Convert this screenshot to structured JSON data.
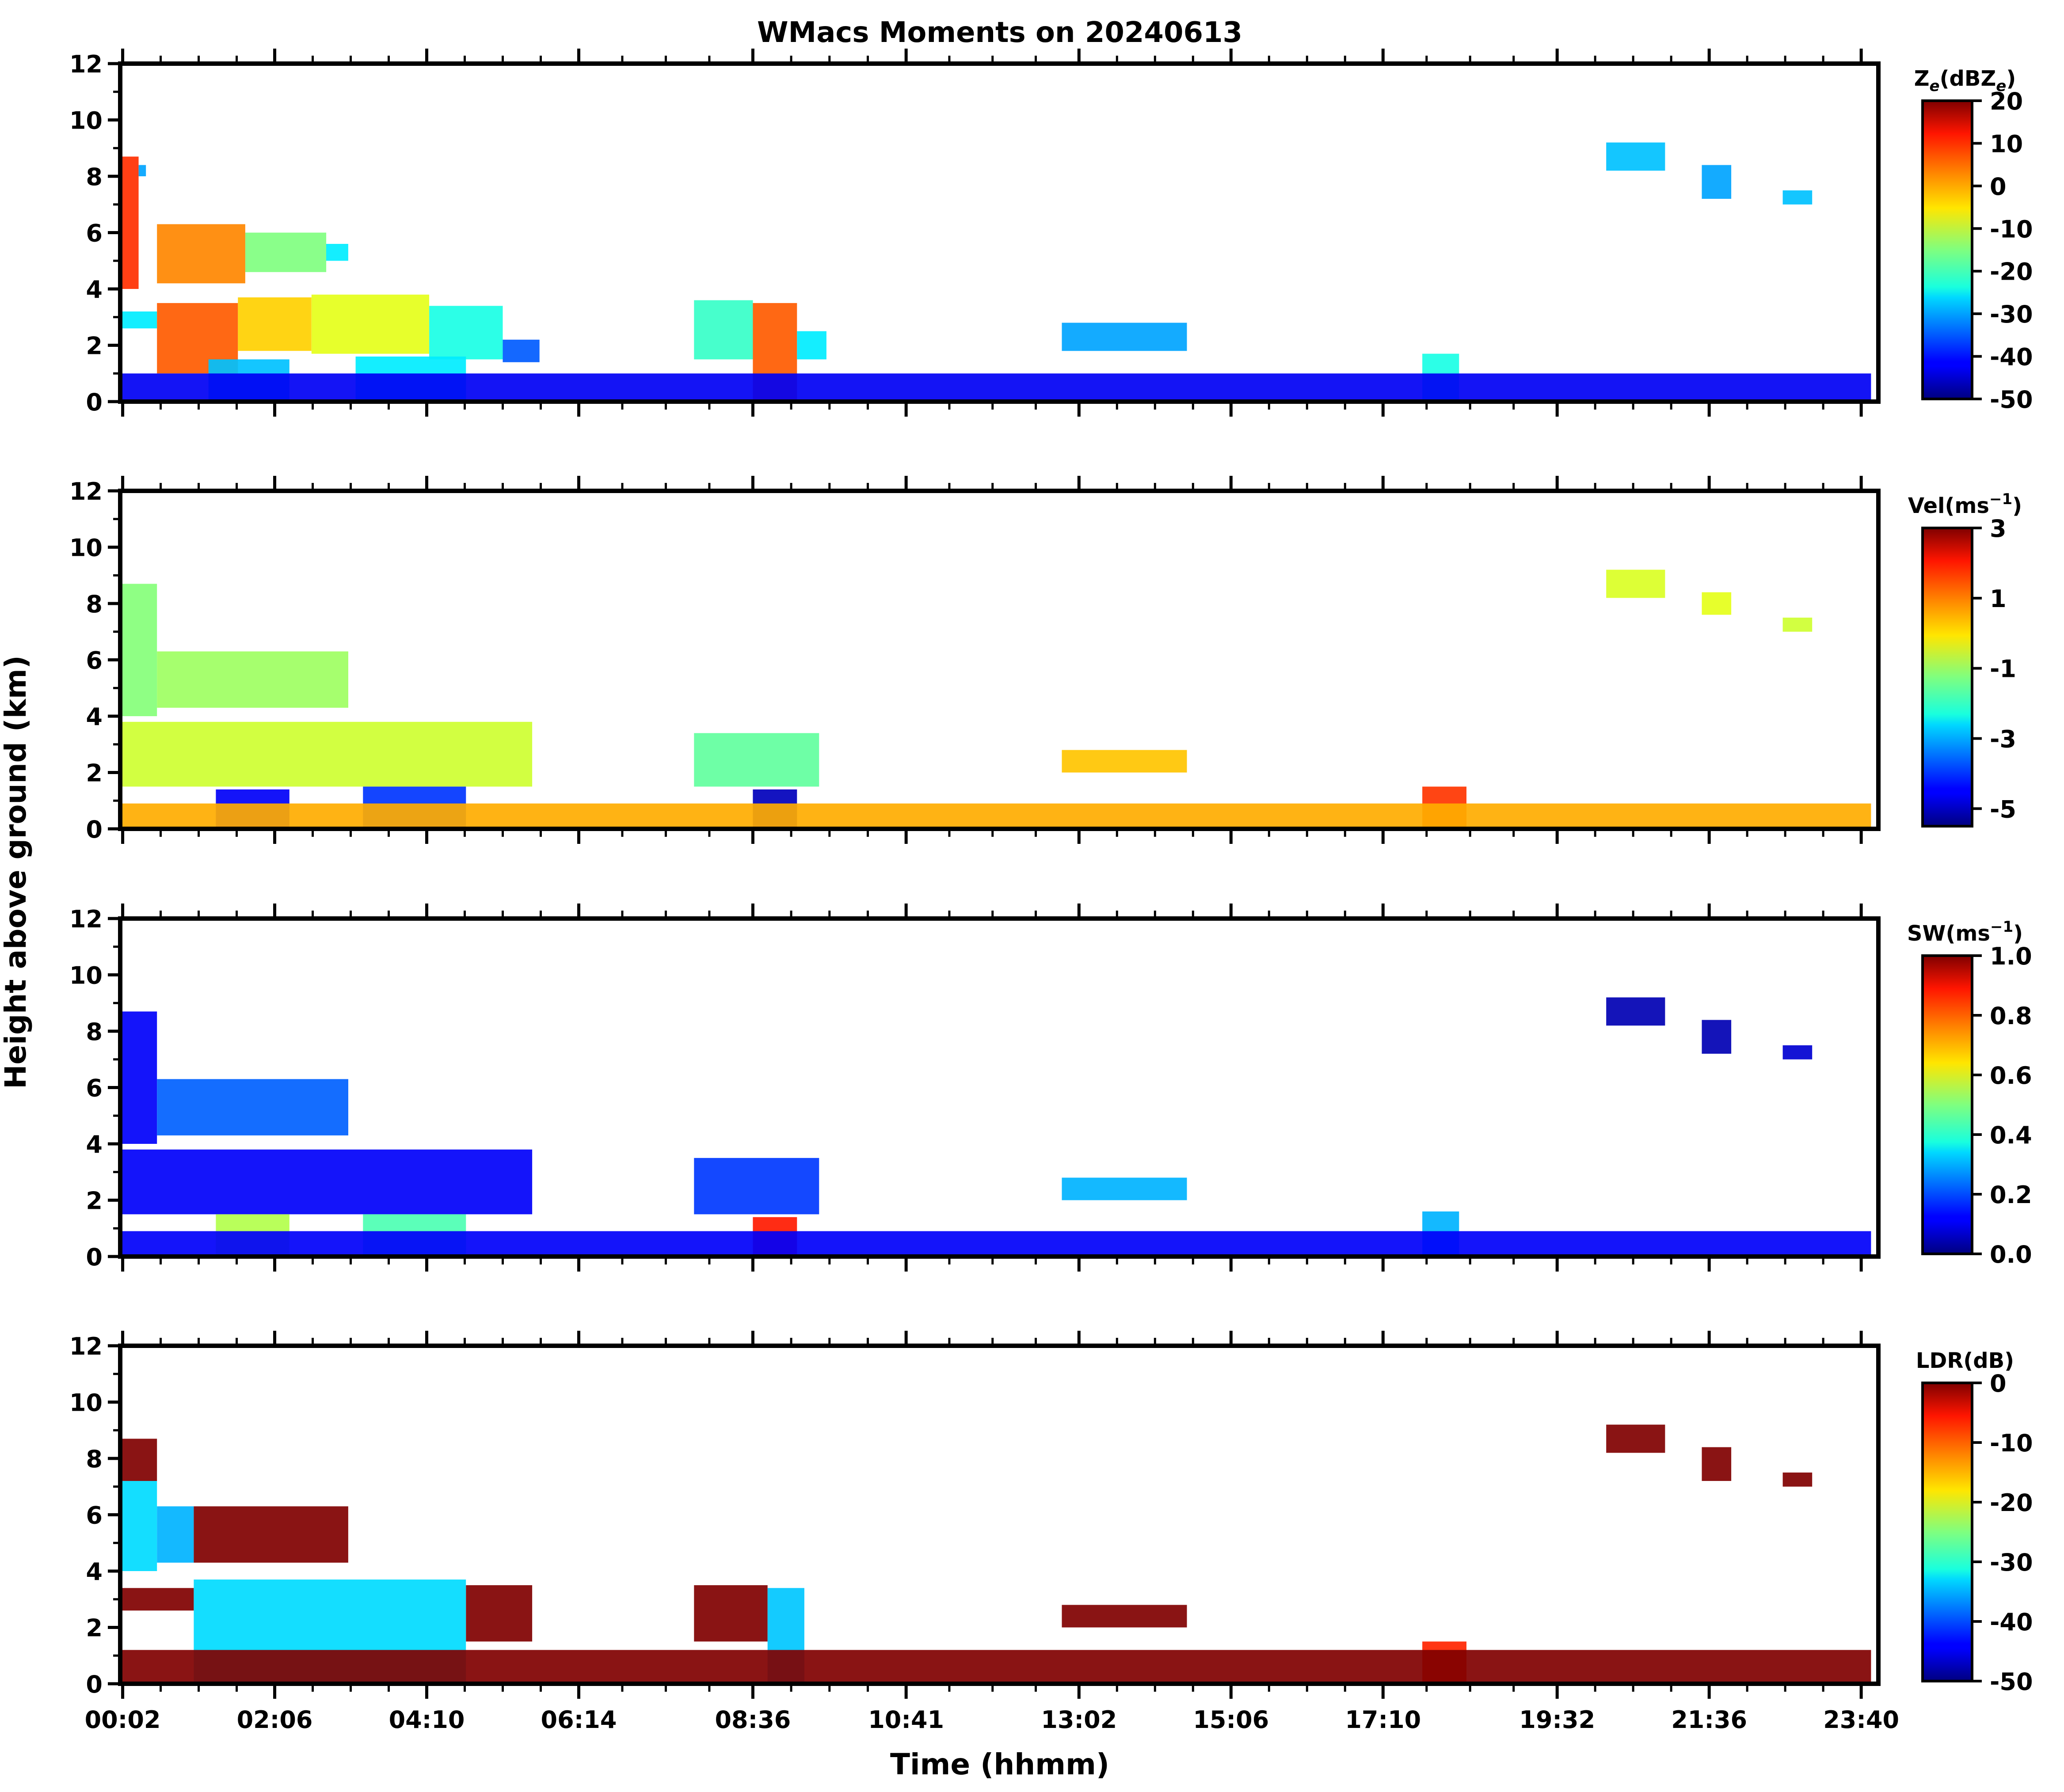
{
  "figure": {
    "title": "WMacs Moments on 20240613",
    "xlabel": "Time (hhmm)",
    "ylabel": "Height above ground (km)",
    "x_tick_labels": [
      "00:02",
      "02:06",
      "04:10",
      "06:14",
      "08:36",
      "10:41",
      "13:02",
      "15:06",
      "17:10",
      "19:32",
      "21:36",
      "23:40"
    ]
  },
  "chart_data": [
    {
      "type": "heatmap",
      "panel": 1,
      "variable": "Ze",
      "colorbar": {
        "label_main": "Z",
        "label_sub": "e",
        "label_open": "(dBZ",
        "label_close": ")",
        "ticks": [
          "20",
          "10",
          "0",
          "-10",
          "-20",
          "-30",
          "-40",
          "-50"
        ],
        "range": [
          -50,
          20
        ]
      },
      "ylim": [
        0,
        12
      ],
      "y_ticks": [
        "0",
        "2",
        "4",
        "6",
        "8",
        "10",
        "12"
      ],
      "colormap": "jet",
      "regions": [
        {
          "t0": 0.0,
          "t1": 0.25,
          "z0": 4.0,
          "z1": 8.7,
          "value": 8
        },
        {
          "t0": 0.25,
          "t1": 0.35,
          "z0": 8.0,
          "z1": 8.4,
          "value": -30
        },
        {
          "t0": 0.5,
          "t1": 1.7,
          "z0": 4.2,
          "z1": 6.3,
          "value": 2
        },
        {
          "t0": 1.7,
          "t1": 2.8,
          "z0": 4.6,
          "z1": 6.0,
          "value": -15
        },
        {
          "t0": 2.8,
          "t1": 3.1,
          "z0": 5.0,
          "z1": 5.6,
          "value": -25
        },
        {
          "t0": 0.0,
          "t1": 0.5,
          "z0": 2.6,
          "z1": 3.2,
          "value": -25
        },
        {
          "t0": 0.5,
          "t1": 1.6,
          "z0": 1.0,
          "z1": 3.5,
          "value": 5
        },
        {
          "t0": 1.6,
          "t1": 2.6,
          "z0": 1.8,
          "z1": 3.7,
          "value": -3
        },
        {
          "t0": 2.6,
          "t1": 4.2,
          "z0": 1.7,
          "z1": 3.8,
          "value": -8
        },
        {
          "t0": 4.2,
          "t1": 5.2,
          "z0": 1.5,
          "z1": 3.4,
          "value": -22
        },
        {
          "t0": 5.2,
          "t1": 5.7,
          "z0": 1.4,
          "z1": 2.2,
          "value": -35
        },
        {
          "t0": 1.2,
          "t1": 2.3,
          "z0": 0.0,
          "z1": 1.5,
          "value": -28
        },
        {
          "t0": 3.2,
          "t1": 4.7,
          "z0": 0.0,
          "z1": 1.6,
          "value": -25
        },
        {
          "t0": 7.8,
          "t1": 8.6,
          "z0": 1.5,
          "z1": 3.6,
          "value": -20
        },
        {
          "t0": 8.6,
          "t1": 9.2,
          "z0": 0.0,
          "z1": 3.5,
          "value": 5
        },
        {
          "t0": 9.2,
          "t1": 9.6,
          "z0": 1.5,
          "z1": 2.5,
          "value": -25
        },
        {
          "t0": 12.8,
          "t1": 14.5,
          "z0": 1.8,
          "z1": 2.8,
          "value": -30
        },
        {
          "t0": 17.7,
          "t1": 18.2,
          "z0": 0.0,
          "z1": 1.7,
          "value": -22
        },
        {
          "t0": 20.2,
          "t1": 21.0,
          "z0": 8.2,
          "z1": 9.2,
          "value": -28
        },
        {
          "t0": 21.5,
          "t1": 21.9,
          "z0": 7.2,
          "z1": 8.4,
          "value": -30
        },
        {
          "t0": 22.6,
          "t1": 23.0,
          "z0": 7.0,
          "z1": 7.5,
          "value": -28
        },
        {
          "t0": 0.0,
          "t1": 23.8,
          "z0": 0.0,
          "z1": 1.0,
          "value": -42
        }
      ]
    },
    {
      "type": "heatmap",
      "panel": 2,
      "variable": "Vel",
      "colorbar": {
        "label_main": "Vel(ms",
        "label_sub": "",
        "label_open": "",
        "label_close": "",
        "label_sup": "−1",
        "label_end": ")",
        "ticks": [
          "3",
          "1",
          "-1",
          "-3",
          "-5"
        ],
        "range": [
          -5.5,
          3
        ]
      },
      "ylim": [
        0,
        12
      ],
      "y_ticks": [
        "0",
        "2",
        "4",
        "6",
        "8",
        "10",
        "12"
      ],
      "colormap": "jet",
      "regions": [
        {
          "t0": 0.0,
          "t1": 0.5,
          "z0": 4.0,
          "z1": 8.7,
          "value": -1.2
        },
        {
          "t0": 0.5,
          "t1": 3.1,
          "z0": 4.3,
          "z1": 6.3,
          "value": -1.0
        },
        {
          "t0": 0.0,
          "t1": 5.6,
          "z0": 1.5,
          "z1": 3.8,
          "value": -0.6
        },
        {
          "t0": 1.3,
          "t1": 2.3,
          "z0": 0.0,
          "z1": 1.4,
          "value": -4.5
        },
        {
          "t0": 3.3,
          "t1": 4.7,
          "z0": 0.0,
          "z1": 1.5,
          "value": -4.0
        },
        {
          "t0": 7.8,
          "t1": 9.5,
          "z0": 1.5,
          "z1": 3.4,
          "value": -1.5
        },
        {
          "t0": 8.6,
          "t1": 9.2,
          "z0": 0.0,
          "z1": 1.4,
          "value": -5.0
        },
        {
          "t0": 12.8,
          "t1": 14.5,
          "z0": 2.0,
          "z1": 2.8,
          "value": 0.3
        },
        {
          "t0": 17.7,
          "t1": 18.3,
          "z0": 0.0,
          "z1": 1.5,
          "value": 1.5
        },
        {
          "t0": 20.2,
          "t1": 21.0,
          "z0": 8.2,
          "z1": 9.2,
          "value": -0.5
        },
        {
          "t0": 21.5,
          "t1": 21.9,
          "z0": 7.6,
          "z1": 8.4,
          "value": -0.4
        },
        {
          "t0": 22.6,
          "t1": 23.0,
          "z0": 7.0,
          "z1": 7.5,
          "value": -0.6
        },
        {
          "t0": 0.0,
          "t1": 23.8,
          "z0": 0.0,
          "z1": 0.9,
          "value": 0.5
        }
      ]
    },
    {
      "type": "heatmap",
      "panel": 3,
      "variable": "SW",
      "colorbar": {
        "label_main": "SW(ms",
        "label_sub": "",
        "label_open": "",
        "label_close": "",
        "label_sup": "−1",
        "label_end": ")",
        "ticks": [
          "1.0",
          "0.8",
          "0.6",
          "0.4",
          "0.2",
          "0.0"
        ],
        "range": [
          0,
          1
        ]
      },
      "ylim": [
        0,
        12
      ],
      "y_ticks": [
        "0",
        "2",
        "4",
        "6",
        "8",
        "10",
        "12"
      ],
      "colormap": "jet",
      "regions": [
        {
          "t0": 0.0,
          "t1": 0.5,
          "z0": 4.0,
          "z1": 8.7,
          "value": 0.12
        },
        {
          "t0": 0.5,
          "t1": 3.1,
          "z0": 4.3,
          "z1": 6.3,
          "value": 0.22
        },
        {
          "t0": 0.0,
          "t1": 5.6,
          "z0": 1.5,
          "z1": 3.8,
          "value": 0.12
        },
        {
          "t0": 1.3,
          "t1": 2.3,
          "z0": 0.0,
          "z1": 1.5,
          "value": 0.55
        },
        {
          "t0": 3.3,
          "t1": 4.7,
          "z0": 0.0,
          "z1": 1.5,
          "value": 0.45
        },
        {
          "t0": 7.8,
          "t1": 9.5,
          "z0": 1.5,
          "z1": 3.5,
          "value": 0.18
        },
        {
          "t0": 8.6,
          "t1": 9.2,
          "z0": 0.0,
          "z1": 1.4,
          "value": 0.85
        },
        {
          "t0": 12.8,
          "t1": 14.5,
          "z0": 2.0,
          "z1": 2.8,
          "value": 0.3
        },
        {
          "t0": 17.7,
          "t1": 18.2,
          "z0": 0.0,
          "z1": 1.6,
          "value": 0.3
        },
        {
          "t0": 20.2,
          "t1": 21.0,
          "z0": 8.2,
          "z1": 9.2,
          "value": 0.05
        },
        {
          "t0": 21.5,
          "t1": 21.9,
          "z0": 7.2,
          "z1": 8.4,
          "value": 0.05
        },
        {
          "t0": 22.6,
          "t1": 23.0,
          "z0": 7.0,
          "z1": 7.5,
          "value": 0.08
        },
        {
          "t0": 0.0,
          "t1": 23.8,
          "z0": 0.0,
          "z1": 0.9,
          "value": 0.12
        }
      ]
    },
    {
      "type": "heatmap",
      "panel": 4,
      "variable": "LDR",
      "colorbar": {
        "label_main": "LDR(dB)",
        "label_sub": "",
        "label_open": "",
        "label_close": "",
        "ticks": [
          "0",
          "-10",
          "-20",
          "-30",
          "-40",
          "-50"
        ],
        "range": [
          -50,
          0
        ]
      },
      "ylim": [
        0,
        12
      ],
      "y_ticks": [
        "0",
        "2",
        "4",
        "6",
        "8",
        "10",
        "12"
      ],
      "colormap": "jet",
      "regions": [
        {
          "t0": 0.0,
          "t1": 0.5,
          "z0": 4.0,
          "z1": 7.2,
          "value": -33
        },
        {
          "t0": 0.0,
          "t1": 0.5,
          "z0": 7.2,
          "z1": 8.7,
          "value": 0
        },
        {
          "t0": 0.5,
          "t1": 1.0,
          "z0": 4.3,
          "z1": 6.3,
          "value": -35
        },
        {
          "t0": 1.0,
          "t1": 3.1,
          "z0": 4.3,
          "z1": 6.3,
          "value": 0
        },
        {
          "t0": 0.0,
          "t1": 1.0,
          "z0": 2.6,
          "z1": 3.4,
          "value": 0
        },
        {
          "t0": 1.0,
          "t1": 4.7,
          "z0": 0.0,
          "z1": 3.7,
          "value": -33
        },
        {
          "t0": 4.7,
          "t1": 5.6,
          "z0": 1.5,
          "z1": 3.5,
          "value": 0
        },
        {
          "t0": 7.8,
          "t1": 8.8,
          "z0": 1.5,
          "z1": 3.5,
          "value": 0
        },
        {
          "t0": 8.8,
          "t1": 9.3,
          "z0": 0.0,
          "z1": 3.4,
          "value": -34
        },
        {
          "t0": 12.8,
          "t1": 14.5,
          "z0": 2.0,
          "z1": 2.8,
          "value": 0
        },
        {
          "t0": 17.7,
          "t1": 18.3,
          "z0": 0.0,
          "z1": 1.5,
          "value": -8
        },
        {
          "t0": 20.2,
          "t1": 21.0,
          "z0": 8.2,
          "z1": 9.2,
          "value": 0
        },
        {
          "t0": 21.5,
          "t1": 21.9,
          "z0": 7.2,
          "z1": 8.4,
          "value": 0
        },
        {
          "t0": 22.6,
          "t1": 23.0,
          "z0": 7.0,
          "z1": 7.5,
          "value": 0
        },
        {
          "t0": 0.0,
          "t1": 23.8,
          "z0": 0.0,
          "z1": 1.2,
          "value": 0
        }
      ]
    }
  ]
}
